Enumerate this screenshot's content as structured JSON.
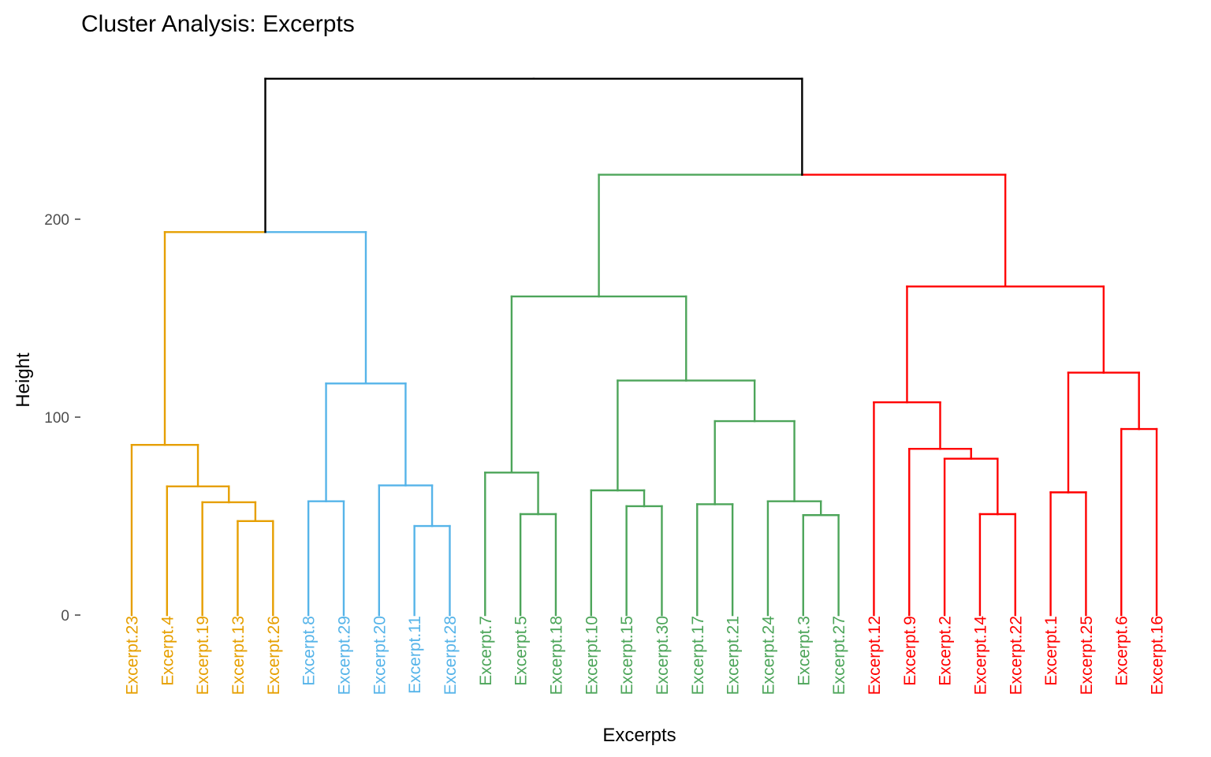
{
  "chart_data": {
    "type": "dendrogram",
    "title": "Cluster Analysis: Excerpts",
    "xlabel": "Excerpts",
    "ylabel": "Height",
    "ylim": [
      0,
      272
    ],
    "yticks": [
      0,
      100,
      200
    ],
    "grid": false,
    "leaves": [
      {
        "label": "Excerpt.23",
        "cluster": 0
      },
      {
        "label": "Excerpt.4",
        "cluster": 0
      },
      {
        "label": "Excerpt.19",
        "cluster": 0
      },
      {
        "label": "Excerpt.13",
        "cluster": 0
      },
      {
        "label": "Excerpt.26",
        "cluster": 0
      },
      {
        "label": "Excerpt.8",
        "cluster": 1
      },
      {
        "label": "Excerpt.29",
        "cluster": 1
      },
      {
        "label": "Excerpt.20",
        "cluster": 1
      },
      {
        "label": "Excerpt.11",
        "cluster": 1
      },
      {
        "label": "Excerpt.28",
        "cluster": 1
      },
      {
        "label": "Excerpt.7",
        "cluster": 2
      },
      {
        "label": "Excerpt.5",
        "cluster": 2
      },
      {
        "label": "Excerpt.18",
        "cluster": 2
      },
      {
        "label": "Excerpt.10",
        "cluster": 2
      },
      {
        "label": "Excerpt.15",
        "cluster": 2
      },
      {
        "label": "Excerpt.30",
        "cluster": 2
      },
      {
        "label": "Excerpt.17",
        "cluster": 2
      },
      {
        "label": "Excerpt.21",
        "cluster": 2
      },
      {
        "label": "Excerpt.24",
        "cluster": 2
      },
      {
        "label": "Excerpt.3",
        "cluster": 2
      },
      {
        "label": "Excerpt.27",
        "cluster": 2
      },
      {
        "label": "Excerpt.12",
        "cluster": 3
      },
      {
        "label": "Excerpt.9",
        "cluster": 3
      },
      {
        "label": "Excerpt.2",
        "cluster": 3
      },
      {
        "label": "Excerpt.14",
        "cluster": 3
      },
      {
        "label": "Excerpt.22",
        "cluster": 3
      },
      {
        "label": "Excerpt.1",
        "cluster": 3
      },
      {
        "label": "Excerpt.25",
        "cluster": 3
      },
      {
        "label": "Excerpt.6",
        "cluster": 3
      },
      {
        "label": "Excerpt.16",
        "cluster": 3
      }
    ],
    "merges": [
      {
        "left": "L3",
        "right": "L4",
        "height": 47.5
      },
      {
        "left": "L2",
        "right": "M0",
        "height": 57
      },
      {
        "left": "L1",
        "right": "M1",
        "height": 65
      },
      {
        "left": "L0",
        "right": "M2",
        "height": 86
      },
      {
        "left": "L5",
        "right": "L6",
        "height": 57.5
      },
      {
        "left": "L8",
        "right": "L9",
        "height": 45
      },
      {
        "left": "L7",
        "right": "M5",
        "height": 65.5
      },
      {
        "left": "M4",
        "right": "M6",
        "height": 117
      },
      {
        "left": "L11",
        "right": "L12",
        "height": 51
      },
      {
        "left": "L10",
        "right": "M8",
        "height": 72
      },
      {
        "left": "L14",
        "right": "L15",
        "height": 55
      },
      {
        "left": "L13",
        "right": "M10",
        "height": 63
      },
      {
        "left": "L16",
        "right": "L17",
        "height": 56
      },
      {
        "left": "L19",
        "right": "L20",
        "height": 50.5
      },
      {
        "left": "L18",
        "right": "M13",
        "height": 57.5
      },
      {
        "left": "M12",
        "right": "M14",
        "height": 98
      },
      {
        "left": "M11",
        "right": "M15",
        "height": 118.5
      },
      {
        "left": "M9",
        "right": "M16",
        "height": 161
      },
      {
        "left": "L24",
        "right": "L25",
        "height": 51
      },
      {
        "left": "L23",
        "right": "M18",
        "height": 79
      },
      {
        "left": "L22",
        "right": "M19",
        "height": 84
      },
      {
        "left": "L21",
        "right": "M20",
        "height": 107.5
      },
      {
        "left": "L26",
        "right": "L27",
        "height": 62
      },
      {
        "left": "L28",
        "right": "L29",
        "height": 94
      },
      {
        "left": "M22",
        "right": "M23",
        "height": 122.5
      },
      {
        "left": "M21",
        "right": "M24",
        "height": 166
      },
      {
        "left": "M3",
        "right": "M7",
        "height": 193.5
      },
      {
        "left": "M17",
        "right": "M25",
        "height": 222.5
      },
      {
        "left": "M26",
        "right": "M27",
        "height": 271
      }
    ],
    "cluster_colors": [
      "#E69F00",
      "#56B4E9",
      "#4DA55A",
      "#FF0000"
    ],
    "root_color": "#000000"
  }
}
